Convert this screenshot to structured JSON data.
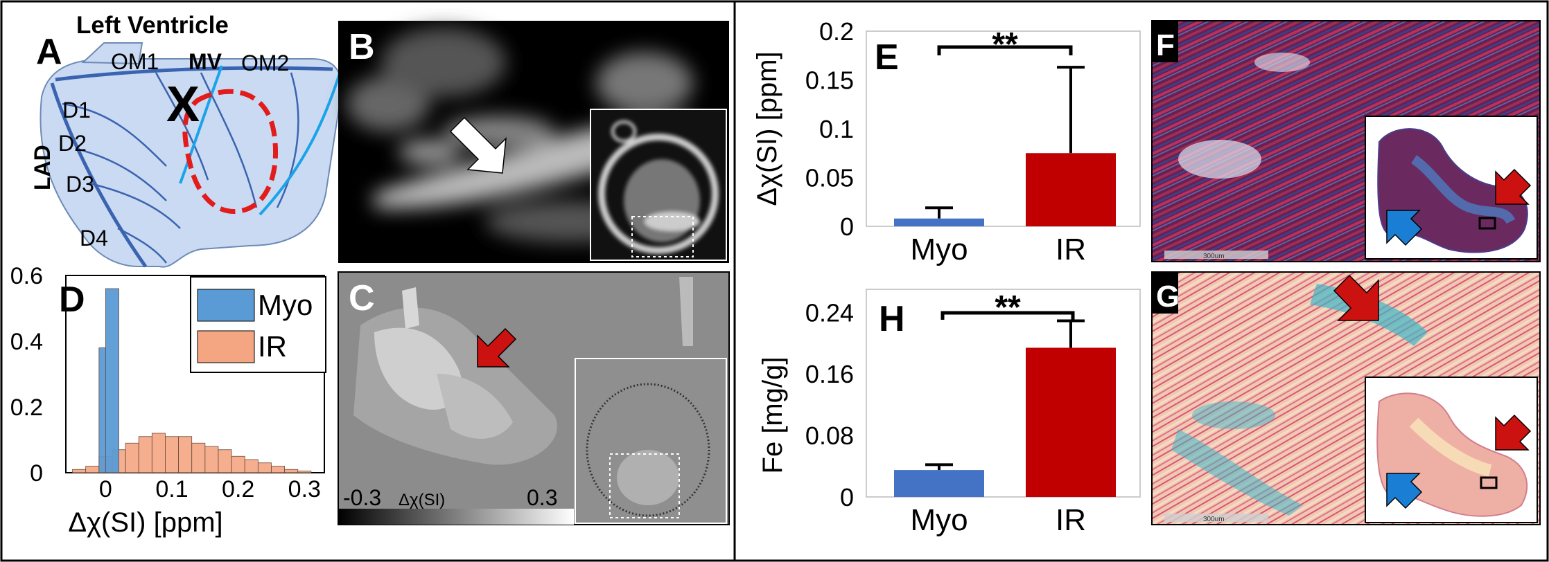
{
  "panels": {
    "A": {
      "letter": "A",
      "title": "Left Ventricle",
      "labels": {
        "om1": "OM1",
        "mv": "MV",
        "om2": "OM2",
        "lad": "LAD",
        "d1": "D1",
        "d2": "D2",
        "d3": "D3",
        "d4": "D4",
        "x": "X"
      }
    },
    "B": {
      "letter": "B"
    },
    "C": {
      "letter": "C",
      "colorbar_min": "-0.3",
      "colorbar_label": "Δχ(SI)",
      "colorbar_max": "0.3"
    },
    "D": {
      "letter": "D"
    },
    "E": {
      "letter": "E"
    },
    "F": {
      "letter": "F",
      "scale_label": "300um"
    },
    "G": {
      "letter": "G",
      "scale_label": "300um"
    },
    "H": {
      "letter": "H"
    }
  },
  "colors": {
    "myo_blue": "#4472c4",
    "ir_red": "#c00000",
    "hist_myo": "#5b9bd5",
    "hist_ir": "#f4a582",
    "arrow_red": "#cc1111",
    "arrow_blue": "#1a7fd4"
  },
  "chart_data": [
    {
      "id": "D",
      "type": "bar",
      "xlabel": "Δχ(SI) [ppm]",
      "ylabel": "",
      "xlim": [
        -0.06,
        0.33
      ],
      "ylim": [
        0,
        0.6
      ],
      "xticks": [
        "0",
        "0.1",
        "0.2",
        "0.3"
      ],
      "xtick_values": [
        0,
        0.1,
        0.2,
        0.3
      ],
      "yticks": [
        "0",
        "0.2",
        "0.4",
        "0.6"
      ],
      "ytick_values": [
        0,
        0.2,
        0.4,
        0.6
      ],
      "legend_position": "top-right",
      "series": [
        {
          "name": "Myo",
          "bins": [
            {
              "x0": -0.01,
              "x1": 0.0,
              "v": 0.38
            },
            {
              "x0": 0.0,
              "x1": 0.02,
              "v": 0.56
            }
          ]
        },
        {
          "name": "IR",
          "bins": [
            {
              "x0": -0.05,
              "x1": -0.03,
              "v": 0.01
            },
            {
              "x0": -0.03,
              "x1": -0.01,
              "v": 0.02
            },
            {
              "x0": -0.01,
              "x1": 0.01,
              "v": 0.05
            },
            {
              "x0": 0.01,
              "x1": 0.03,
              "v": 0.07
            },
            {
              "x0": 0.03,
              "x1": 0.05,
              "v": 0.09
            },
            {
              "x0": 0.05,
              "x1": 0.07,
              "v": 0.11
            },
            {
              "x0": 0.07,
              "x1": 0.09,
              "v": 0.12
            },
            {
              "x0": 0.09,
              "x1": 0.11,
              "v": 0.11
            },
            {
              "x0": 0.11,
              "x1": 0.13,
              "v": 0.11
            },
            {
              "x0": 0.13,
              "x1": 0.15,
              "v": 0.09
            },
            {
              "x0": 0.15,
              "x1": 0.17,
              "v": 0.08
            },
            {
              "x0": 0.17,
              "x1": 0.19,
              "v": 0.07
            },
            {
              "x0": 0.19,
              "x1": 0.21,
              "v": 0.05
            },
            {
              "x0": 0.21,
              "x1": 0.23,
              "v": 0.04
            },
            {
              "x0": 0.23,
              "x1": 0.25,
              "v": 0.03
            },
            {
              "x0": 0.25,
              "x1": 0.27,
              "v": 0.02
            },
            {
              "x0": 0.27,
              "x1": 0.29,
              "v": 0.01
            },
            {
              "x0": 0.29,
              "x1": 0.31,
              "v": 0.005
            }
          ]
        }
      ]
    },
    {
      "id": "E",
      "type": "bar",
      "categories": [
        "Myo",
        "IR"
      ],
      "values": [
        0.008,
        0.075
      ],
      "errors": [
        0.011,
        0.088
      ],
      "ylabel": "Δχ(SI) [ppm]",
      "xlabel": "",
      "ylim": [
        0,
        0.2
      ],
      "yticks": [
        "0",
        "0.05",
        "0.1",
        "0.15",
        "0.2"
      ],
      "ytick_values": [
        0,
        0.05,
        0.1,
        0.15,
        0.2
      ],
      "significance": "**",
      "grid": false
    },
    {
      "id": "H",
      "type": "bar",
      "categories": [
        "Myo",
        "IR"
      ],
      "values": [
        0.035,
        0.194
      ],
      "errors": [
        0.007,
        0.035
      ],
      "ylabel": "Fe [mg/g]",
      "xlabel": "",
      "ylim": [
        0,
        0.27
      ],
      "yticks": [
        "0",
        "0.08",
        "0.16",
        "0.24"
      ],
      "ytick_values": [
        0,
        0.08,
        0.16,
        0.24
      ],
      "significance": "**",
      "grid": false
    }
  ]
}
